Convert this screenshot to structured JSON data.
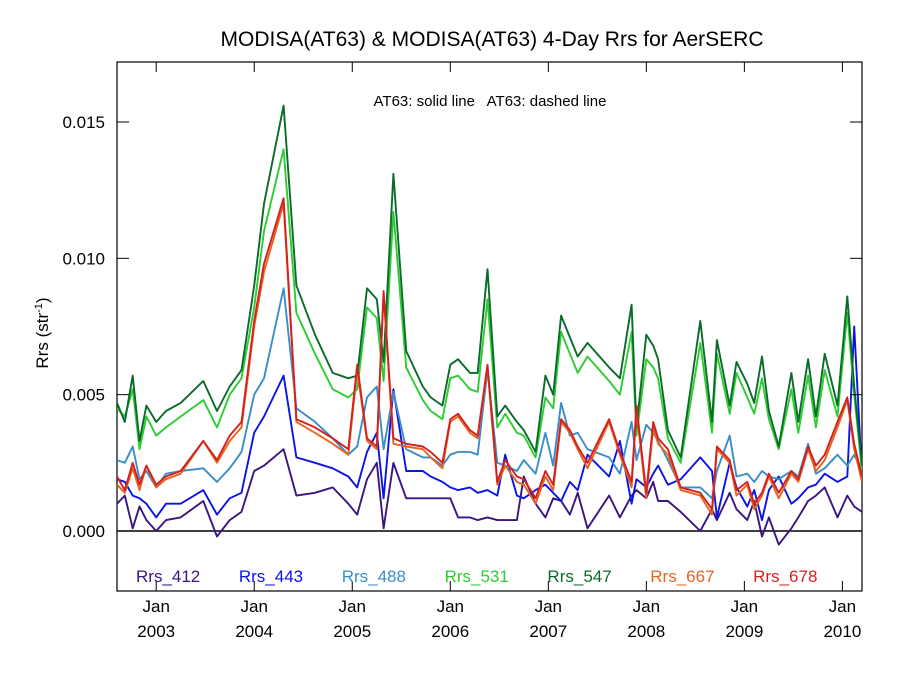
{
  "chart_data": {
    "type": "line",
    "title": "MODISA(AT63) & MODISA(AT63) 4-Day Rrs for AerSERC",
    "ylabel_main": "Rrs (str",
    "ylabel_sup": "-1",
    "ylabel_close": ")",
    "annotation": "AT63: solid line   AT63: dashed line",
    "xlim": [
      2002.6,
      2010.2
    ],
    "ylim": [
      -0.0022,
      0.0172
    ],
    "yticks": [
      {
        "value": 0.0,
        "label": "0.000"
      },
      {
        "value": 0.005,
        "label": "0.005"
      },
      {
        "value": 0.01,
        "label": "0.010"
      },
      {
        "value": 0.015,
        "label": "0.015"
      }
    ],
    "xticks": [
      {
        "value": 2003.0,
        "month": "Jan",
        "year": "2003"
      },
      {
        "value": 2004.0,
        "month": "Jan",
        "year": "2004"
      },
      {
        "value": 2005.0,
        "month": "Jan",
        "year": "2005"
      },
      {
        "value": 2006.0,
        "month": "Jan",
        "year": "2006"
      },
      {
        "value": 2007.0,
        "month": "Jan",
        "year": "2007"
      },
      {
        "value": 2008.0,
        "month": "Jan",
        "year": "2008"
      },
      {
        "value": 2009.0,
        "month": "Jan",
        "year": "2009"
      },
      {
        "value": 2010.0,
        "month": "Jan",
        "year": "2010"
      }
    ],
    "zero_line": 0.0,
    "x": [
      2002.6,
      2002.68,
      2002.76,
      2002.83,
      2002.9,
      2003.0,
      2003.1,
      2003.25,
      2003.48,
      2003.62,
      2003.75,
      2003.87,
      2004.0,
      2004.1,
      2004.3,
      2004.43,
      2004.62,
      2004.8,
      2004.96,
      2005.05,
      2005.15,
      2005.25,
      2005.32,
      2005.42,
      2005.55,
      2005.72,
      2005.8,
      2005.92,
      2006.0,
      2006.08,
      2006.2,
      2006.28,
      2006.38,
      2006.48,
      2006.56,
      2006.68,
      2006.75,
      2006.87,
      2006.97,
      2007.05,
      2007.13,
      2007.22,
      2007.3,
      2007.4,
      2007.62,
      2007.73,
      2007.85,
      2007.9,
      2008.0,
      2008.07,
      2008.12,
      2008.22,
      2008.35,
      2008.55,
      2008.67,
      2008.72,
      2008.85,
      2008.92,
      2009.03,
      2009.1,
      2009.18,
      2009.25,
      2009.35,
      2009.48,
      2009.55,
      2009.65,
      2009.73,
      2009.82,
      2009.95,
      2010.05,
      2010.12,
      2010.2
    ],
    "series": [
      {
        "name": "Rrs_412",
        "color": "#3b1580",
        "values": [
          0.001,
          0.0013,
          0.0001,
          0.0009,
          0.0004,
          0.0,
          0.0004,
          0.0005,
          0.0011,
          -0.0002,
          0.0004,
          0.0007,
          0.0022,
          0.0024,
          0.003,
          0.0013,
          0.0014,
          0.0016,
          0.001,
          0.0006,
          0.0019,
          0.0025,
          0.0001,
          0.0025,
          0.0012,
          0.0012,
          0.0012,
          0.0012,
          0.0012,
          0.0005,
          0.0005,
          0.0004,
          0.0005,
          0.0004,
          0.0004,
          0.0004,
          0.002,
          0.001,
          0.0005,
          0.0012,
          0.0011,
          0.0006,
          0.0014,
          0.0001,
          0.0013,
          0.0005,
          0.0013,
          0.0015,
          0.0012,
          0.0018,
          0.0011,
          0.0011,
          0.0007,
          0.0,
          0.0008,
          0.0004,
          0.0014,
          0.0008,
          0.0004,
          0.0011,
          -0.0002,
          0.0005,
          -0.0005,
          0.0001,
          0.0005,
          0.0011,
          0.0013,
          0.0016,
          0.0005,
          0.0013,
          0.0009,
          0.0007
        ]
      },
      {
        "name": "Rrs_443",
        "color": "#0a14e8",
        "values": [
          0.0019,
          0.0018,
          0.0013,
          0.0012,
          0.001,
          0.0005,
          0.001,
          0.001,
          0.0015,
          0.0006,
          0.0012,
          0.0014,
          0.0036,
          0.0042,
          0.0057,
          0.0027,
          0.0025,
          0.0023,
          0.002,
          0.0016,
          0.0029,
          0.0036,
          0.0012,
          0.0052,
          0.0022,
          0.0022,
          0.002,
          0.0018,
          0.0016,
          0.0015,
          0.0016,
          0.0014,
          0.0015,
          0.0013,
          0.0028,
          0.0013,
          0.0012,
          0.0015,
          0.0017,
          0.0014,
          0.0011,
          0.0018,
          0.0015,
          0.0028,
          0.002,
          0.0033,
          0.001,
          0.0019,
          0.0016,
          0.0021,
          0.0024,
          0.0017,
          0.0019,
          0.0027,
          0.0022,
          0.0005,
          0.0025,
          0.0016,
          0.0009,
          0.0015,
          0.0004,
          0.0015,
          0.002,
          0.001,
          0.0012,
          0.0016,
          0.0017,
          0.0021,
          0.0018,
          0.002,
          0.0075,
          0.002
        ]
      },
      {
        "name": "Rrs_488",
        "color": "#3a8ec7",
        "values": [
          0.0026,
          0.0025,
          0.0031,
          0.0019,
          0.0022,
          0.0016,
          0.0021,
          0.0022,
          0.0023,
          0.0018,
          0.0023,
          0.0029,
          0.005,
          0.0056,
          0.0089,
          0.0045,
          0.004,
          0.0034,
          0.0028,
          0.0031,
          0.0049,
          0.0053,
          0.003,
          0.0051,
          0.003,
          0.0027,
          0.0027,
          0.0024,
          0.0028,
          0.0029,
          0.0029,
          0.0028,
          0.0059,
          0.0025,
          0.0024,
          0.0022,
          0.0026,
          0.0021,
          0.0036,
          0.0024,
          0.0047,
          0.0035,
          0.0036,
          0.003,
          0.0027,
          0.0021,
          0.004,
          0.0026,
          0.0039,
          0.0036,
          0.0033,
          0.0026,
          0.0016,
          0.0016,
          0.0012,
          0.0022,
          0.0035,
          0.002,
          0.0021,
          0.0018,
          0.0022,
          0.002,
          0.0019,
          0.0022,
          0.002,
          0.0032,
          0.0021,
          0.0023,
          0.0028,
          0.0024,
          0.0028,
          0.0022
        ]
      },
      {
        "name": "Rrs_531",
        "color": "#2ecc32",
        "values": [
          0.0045,
          0.0042,
          0.0052,
          0.003,
          0.0042,
          0.0035,
          0.0038,
          0.0042,
          0.0048,
          0.0038,
          0.005,
          0.0056,
          0.0082,
          0.011,
          0.014,
          0.008,
          0.0065,
          0.0052,
          0.0049,
          0.0052,
          0.0082,
          0.0078,
          0.0055,
          0.0117,
          0.006,
          0.0048,
          0.0044,
          0.0041,
          0.0056,
          0.0057,
          0.0052,
          0.0051,
          0.0085,
          0.0038,
          0.0043,
          0.0036,
          0.0035,
          0.0027,
          0.0049,
          0.0045,
          0.0073,
          0.0065,
          0.0058,
          0.0064,
          0.0055,
          0.005,
          0.0073,
          0.0035,
          0.0063,
          0.006,
          0.0056,
          0.0034,
          0.0025,
          0.0069,
          0.0036,
          0.0065,
          0.0043,
          0.0058,
          0.0049,
          0.0043,
          0.0056,
          0.0041,
          0.003,
          0.0052,
          0.0036,
          0.0057,
          0.0038,
          0.0059,
          0.0042,
          0.008,
          0.005,
          0.0022
        ]
      },
      {
        "name": "Rrs_547",
        "color": "#0a6b2a",
        "values": [
          0.0047,
          0.004,
          0.0057,
          0.0033,
          0.0046,
          0.004,
          0.0044,
          0.0047,
          0.0055,
          0.0044,
          0.0053,
          0.0059,
          0.009,
          0.012,
          0.0156,
          0.009,
          0.0072,
          0.0058,
          0.0056,
          0.0057,
          0.0089,
          0.0085,
          0.0062,
          0.0131,
          0.0066,
          0.0053,
          0.0049,
          0.0046,
          0.0061,
          0.0063,
          0.0058,
          0.0058,
          0.0096,
          0.0042,
          0.0046,
          0.004,
          0.0037,
          0.0029,
          0.0057,
          0.005,
          0.0079,
          0.0071,
          0.0064,
          0.0069,
          0.006,
          0.0056,
          0.0083,
          0.0038,
          0.0072,
          0.0068,
          0.0063,
          0.0037,
          0.0027,
          0.0077,
          0.004,
          0.007,
          0.0046,
          0.0062,
          0.0054,
          0.0047,
          0.0064,
          0.0044,
          0.0031,
          0.0058,
          0.004,
          0.0063,
          0.0042,
          0.0065,
          0.0046,
          0.0086,
          0.0053,
          0.0024
        ]
      },
      {
        "name": "Rrs_667",
        "color": "#e8641e",
        "values": [
          0.0017,
          0.0014,
          0.0023,
          0.0015,
          0.0024,
          0.0016,
          0.0019,
          0.0021,
          0.0033,
          0.0025,
          0.0033,
          0.0038,
          0.0075,
          0.0095,
          0.012,
          0.004,
          0.0036,
          0.0032,
          0.0028,
          0.0059,
          0.0033,
          0.003,
          0.0087,
          0.0032,
          0.0031,
          0.003,
          0.0027,
          0.0023,
          0.004,
          0.0042,
          0.0036,
          0.0034,
          0.006,
          0.0017,
          0.0024,
          0.0018,
          0.0017,
          0.001,
          0.002,
          0.0015,
          0.004,
          0.0036,
          0.003,
          0.0023,
          0.004,
          0.0028,
          0.0016,
          0.0044,
          0.0012,
          0.0038,
          0.0032,
          0.0028,
          0.0015,
          0.0013,
          0.0006,
          0.003,
          0.0025,
          0.0013,
          0.0017,
          0.0008,
          0.0013,
          0.002,
          0.0012,
          0.0021,
          0.0018,
          0.003,
          0.0022,
          0.0026,
          0.0038,
          0.0048,
          0.003,
          0.0018
        ]
      },
      {
        "name": "Rrs_678",
        "color": "#d42020",
        "values": [
          0.002,
          0.0015,
          0.0025,
          0.0017,
          0.0024,
          0.0017,
          0.002,
          0.0022,
          0.0033,
          0.0026,
          0.0035,
          0.004,
          0.0077,
          0.0098,
          0.0122,
          0.0041,
          0.0038,
          0.0034,
          0.003,
          0.0061,
          0.0034,
          0.0031,
          0.0088,
          0.0034,
          0.0032,
          0.0031,
          0.0029,
          0.0025,
          0.0041,
          0.0043,
          0.0037,
          0.0035,
          0.0061,
          0.0018,
          0.0026,
          0.002,
          0.0019,
          0.0012,
          0.0022,
          0.0017,
          0.0041,
          0.0037,
          0.0031,
          0.0025,
          0.0041,
          0.0029,
          0.0018,
          0.0046,
          0.0014,
          0.004,
          0.0034,
          0.003,
          0.0016,
          0.0014,
          0.0008,
          0.0031,
          0.0026,
          0.0015,
          0.0018,
          0.001,
          0.0014,
          0.0021,
          0.0014,
          0.0022,
          0.0019,
          0.0031,
          0.0024,
          0.0028,
          0.004,
          0.0049,
          0.0032,
          0.002
        ]
      }
    ]
  }
}
